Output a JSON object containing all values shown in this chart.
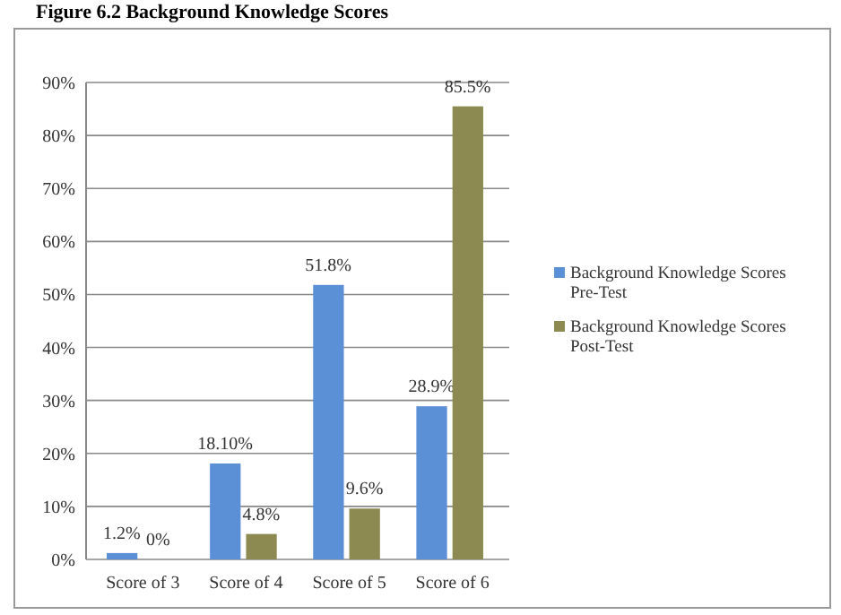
{
  "chart_data": {
    "type": "bar",
    "title": "Figure 6.2 Background Knowledge Scores",
    "categories": [
      "Score of 3",
      "Score of 4",
      "Score of 5",
      "Score of 6"
    ],
    "series": [
      {
        "name": "Background Knowledge Scores Pre-Test",
        "color": "#5b8fd6",
        "values": [
          1.2,
          18.1,
          51.8,
          28.9
        ],
        "value_labels": [
          "1.2%",
          "18.10%",
          "51.8%",
          "28.9%"
        ]
      },
      {
        "name": "Background Knowledge Scores Post-Test",
        "color": "#8c8a50",
        "values": [
          0,
          4.8,
          9.6,
          85.5
        ],
        "value_labels": [
          "0%",
          "4.8%",
          "9.6%",
          "85.5%"
        ]
      }
    ],
    "ylim": [
      0,
      90
    ],
    "yticks": [
      {
        "value": 0,
        "label": "0%"
      },
      {
        "value": 10,
        "label": "10%"
      },
      {
        "value": 20,
        "label": "20%"
      },
      {
        "value": 30,
        "label": "30%"
      },
      {
        "value": 40,
        "label": "40%"
      },
      {
        "value": 50,
        "label": "50%"
      },
      {
        "value": 60,
        "label": "60%"
      },
      {
        "value": 70,
        "label": "70%"
      },
      {
        "value": 80,
        "label": "80%"
      },
      {
        "value": 90,
        "label": "90%"
      }
    ],
    "grid": "y",
    "legend": "right"
  }
}
